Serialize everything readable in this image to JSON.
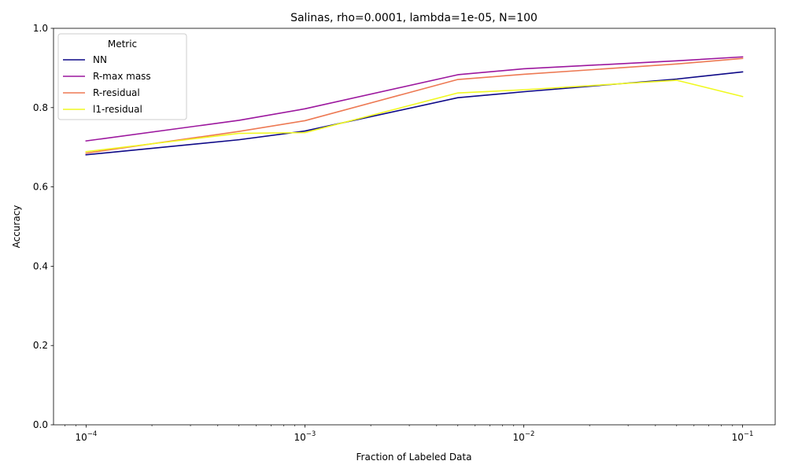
{
  "chart_data": {
    "type": "line",
    "title": "Salinas, rho=0.0001, lambda=1e-05, N=100",
    "xlabel": "Fraction of Labeled Data",
    "ylabel": "Accuracy",
    "xscale": "log",
    "xlim": [
      7.1e-05,
      0.141
    ],
    "ylim": [
      0,
      1
    ],
    "x": [
      0.0001,
      0.0005,
      0.001,
      0.005,
      0.01,
      0.05,
      0.1
    ],
    "x_ticks": [
      {
        "value": 0.0001,
        "base": "10",
        "exp": "−4"
      },
      {
        "value": 0.001,
        "base": "10",
        "exp": "−3"
      },
      {
        "value": 0.01,
        "base": "10",
        "exp": "−2"
      },
      {
        "value": 0.1,
        "base": "10",
        "exp": "−1"
      }
    ],
    "y_ticks": [
      "0.0",
      "0.2",
      "0.4",
      "0.6",
      "0.8",
      "1.0"
    ],
    "legend": {
      "title": "Metric",
      "placement": "top-left"
    },
    "series": [
      {
        "name": "NN",
        "color": "#0d0887",
        "values": [
          0.681,
          0.719,
          0.741,
          0.825,
          0.84,
          0.872,
          0.89
        ]
      },
      {
        "name": "R-max mass",
        "color": "#9c179e",
        "values": [
          0.716,
          0.768,
          0.797,
          0.883,
          0.898,
          0.918,
          0.928
        ]
      },
      {
        "name": "R-residual",
        "color": "#ed7953",
        "values": [
          0.685,
          0.74,
          0.767,
          0.871,
          0.884,
          0.91,
          0.924
        ]
      },
      {
        "name": "l1-residual",
        "color": "#f0f921",
        "values": [
          0.689,
          0.735,
          0.737,
          0.837,
          0.845,
          0.869,
          0.828
        ]
      }
    ]
  }
}
